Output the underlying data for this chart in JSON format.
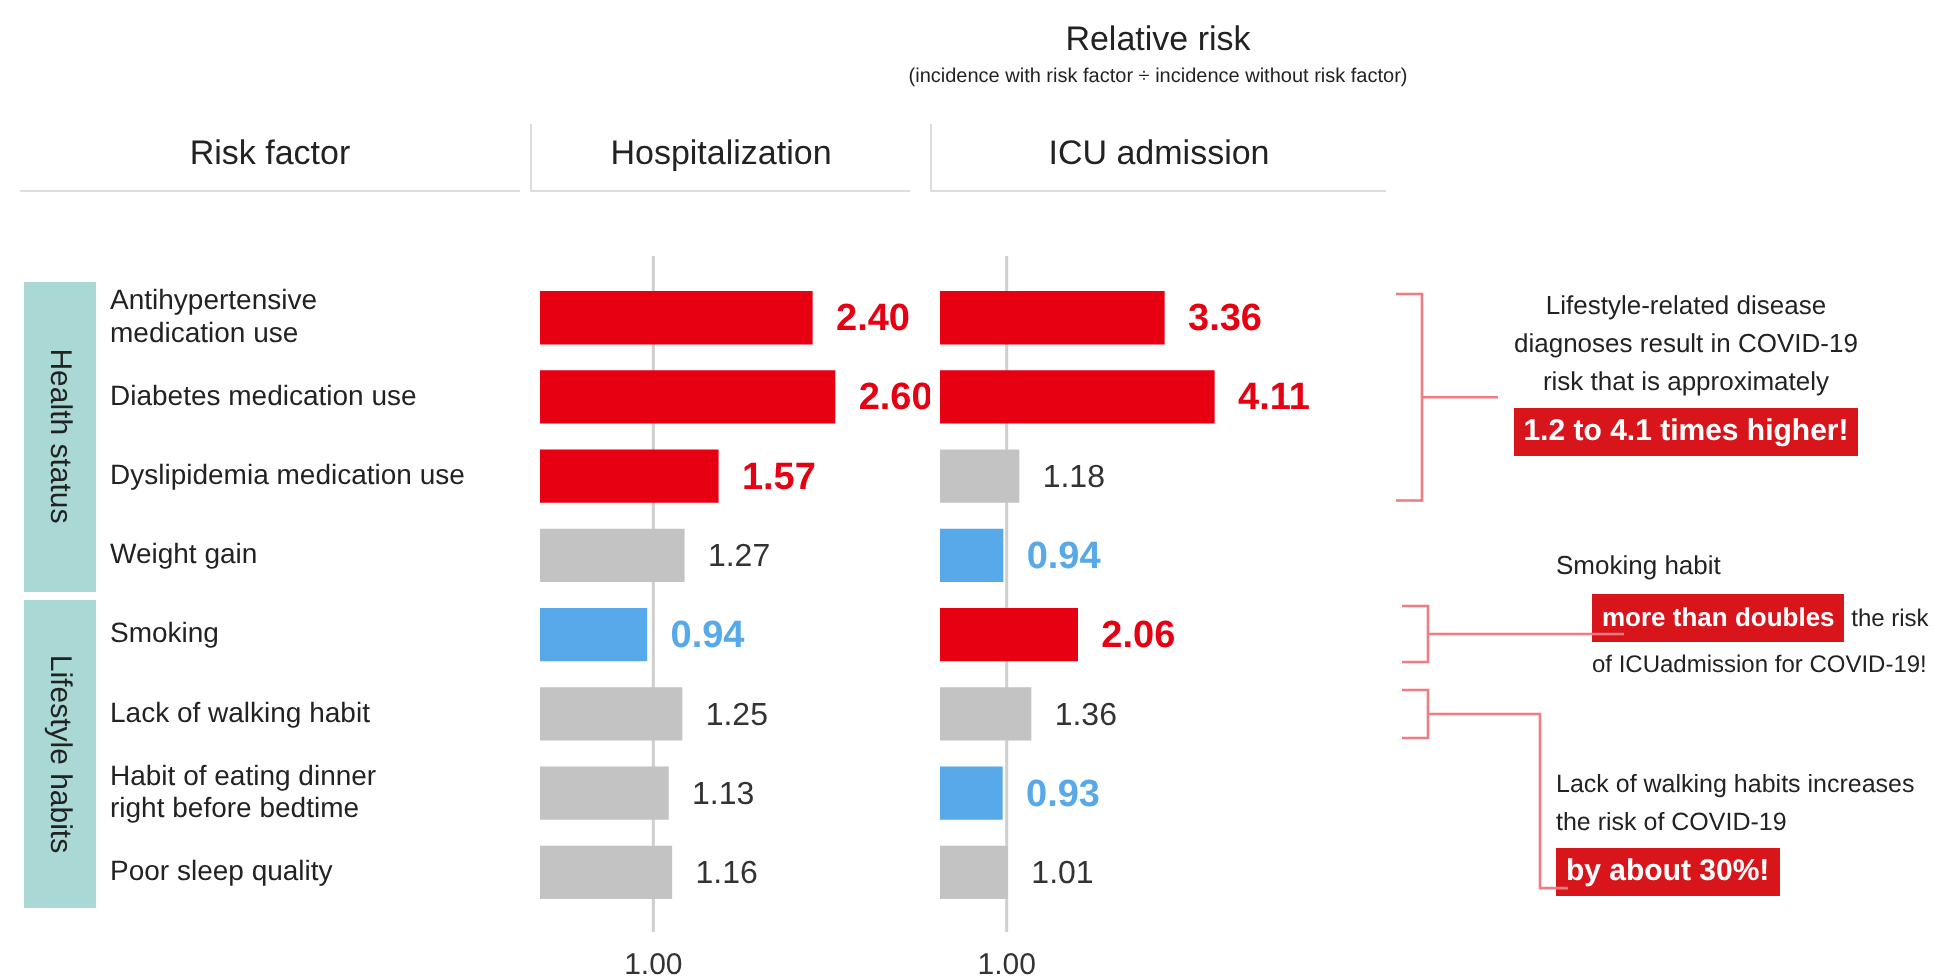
{
  "chart_data": [
    {
      "type": "bar",
      "orientation": "horizontal",
      "title": "Hospitalization",
      "ylabel": "Risk factor",
      "categories": [
        "Antihypertensive\nmedication use",
        "Diabetes medication use",
        "Dyslipidemia medication use",
        "Weight gain",
        "Smoking",
        "Lack of walking habit",
        "Habit of eating dinner\nright before bedtime",
        "Poor sleep quality"
      ],
      "values": [
        2.4,
        2.6,
        1.57,
        1.27,
        0.94,
        1.25,
        1.13,
        1.16
      ],
      "value_labels": [
        "2.40",
        "2.60",
        "1.57",
        "1.27",
        "0.94",
        "1.25",
        "1.13",
        "1.16"
      ],
      "colors": [
        "#e60012",
        "#e60012",
        "#e60012",
        "#c3c3c3",
        "#58a9e9",
        "#c3c3c3",
        "#c3c3c3",
        "#c3c3c3"
      ],
      "ref_lines": [
        {
          "axis": "x",
          "value": 1,
          "label": "1.00",
          "color": "#cfcfcf"
        }
      ],
      "annotations": [
        "Relative risk",
        "(incidence with risk factor ÷ incidence without risk factor)",
        "Health status",
        "Lifestyle habits"
      ]
    },
    {
      "type": "bar",
      "orientation": "horizontal",
      "title": "ICU admission",
      "categories": [
        null,
        null,
        null,
        null,
        null,
        null,
        null,
        null
      ],
      "values": [
        3.36,
        4.11,
        1.18,
        0.94,
        2.06,
        1.36,
        0.93,
        1.01
      ],
      "value_labels": [
        "3.36",
        "4.11",
        "1.18",
        "0.94",
        "2.06",
        "1.36",
        "0.93",
        "1.01"
      ],
      "colors": [
        "#e60012",
        "#e60012",
        "#c3c3c3",
        "#58a9e9",
        "#e60012",
        "#c3c3c3",
        "#58a9e9",
        "#c3c3c3"
      ],
      "ref_lines": [
        {
          "axis": "x",
          "value": 1,
          "label": "1.00",
          "color": "#cfcfcf"
        }
      ],
      "annotations": [
        "Lifestyle-related disease diagnoses result in COVID-19 risk that is approximately",
        "1.2 to 4.1 times higher!",
        "Smoking habit",
        "more than doubles",
        "the risk of ICUadmission for COVID-19!",
        "Lack of walking habits increases the risk of COVID-19",
        "by about 30%!"
      ]
    }
  ]
}
